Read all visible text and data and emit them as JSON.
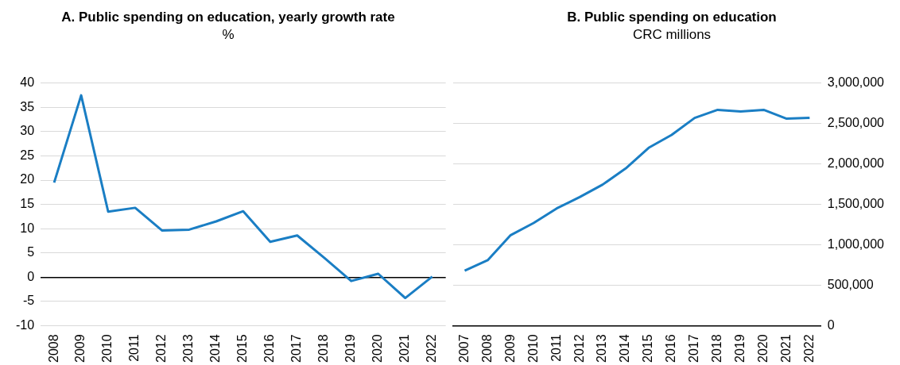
{
  "chart_data": [
    {
      "type": "line",
      "title": "A. Public spending on education, yearly growth rate",
      "subtitle": "%",
      "categories": [
        "2008",
        "2009",
        "2010",
        "2011",
        "2012",
        "2013",
        "2014",
        "2015",
        "2016",
        "2017",
        "2018",
        "2019",
        "2020",
        "2021",
        "2022"
      ],
      "series": [
        {
          "color": "#1a7ec4",
          "values": [
            19.5,
            37.5,
            13.5,
            14.3,
            9.6,
            9.8,
            11.5,
            13.6,
            7.3,
            8.6,
            4.0,
            -0.8,
            0.7,
            -4.3,
            0.1
          ]
        }
      ],
      "ylim": [
        -10,
        40
      ],
      "yticks": [
        -10,
        -5,
        0,
        5,
        10,
        15,
        20,
        25,
        30,
        35,
        40
      ],
      "grid": "y",
      "marker": "none"
    },
    {
      "type": "line",
      "title": "B. Public spending on education",
      "subtitle": "CRC millions",
      "categories": [
        "2007",
        "2008",
        "2009",
        "2010",
        "2011",
        "2012",
        "2013",
        "2014",
        "2015",
        "2016",
        "2017",
        "2018",
        "2019",
        "2020",
        "2021",
        "2022"
      ],
      "series": [
        {
          "color": "#1a7ec4",
          "axis": "y2",
          "values": [
            680000,
            810000,
            1120000,
            1270000,
            1450000,
            1590000,
            1745000,
            1945000,
            2200000,
            2360000,
            2570000,
            2670000,
            2650000,
            2670000,
            2560000,
            2570000
          ]
        }
      ],
      "y2lim": [
        0,
        3000000
      ],
      "y2ticks": [
        0,
        {
          "value": 500000,
          "label": "500,000"
        },
        {
          "value": 1000000,
          "label": "1,000,000"
        },
        {
          "value": 1500000,
          "label": "1,500,000"
        },
        {
          "value": 2000000,
          "label": "2,000,000"
        },
        {
          "value": 2500000,
          "label": "2,500,000"
        },
        {
          "value": 3000000,
          "label": "3,000,000"
        }
      ],
      "grid": "y",
      "marker": "none"
    }
  ]
}
